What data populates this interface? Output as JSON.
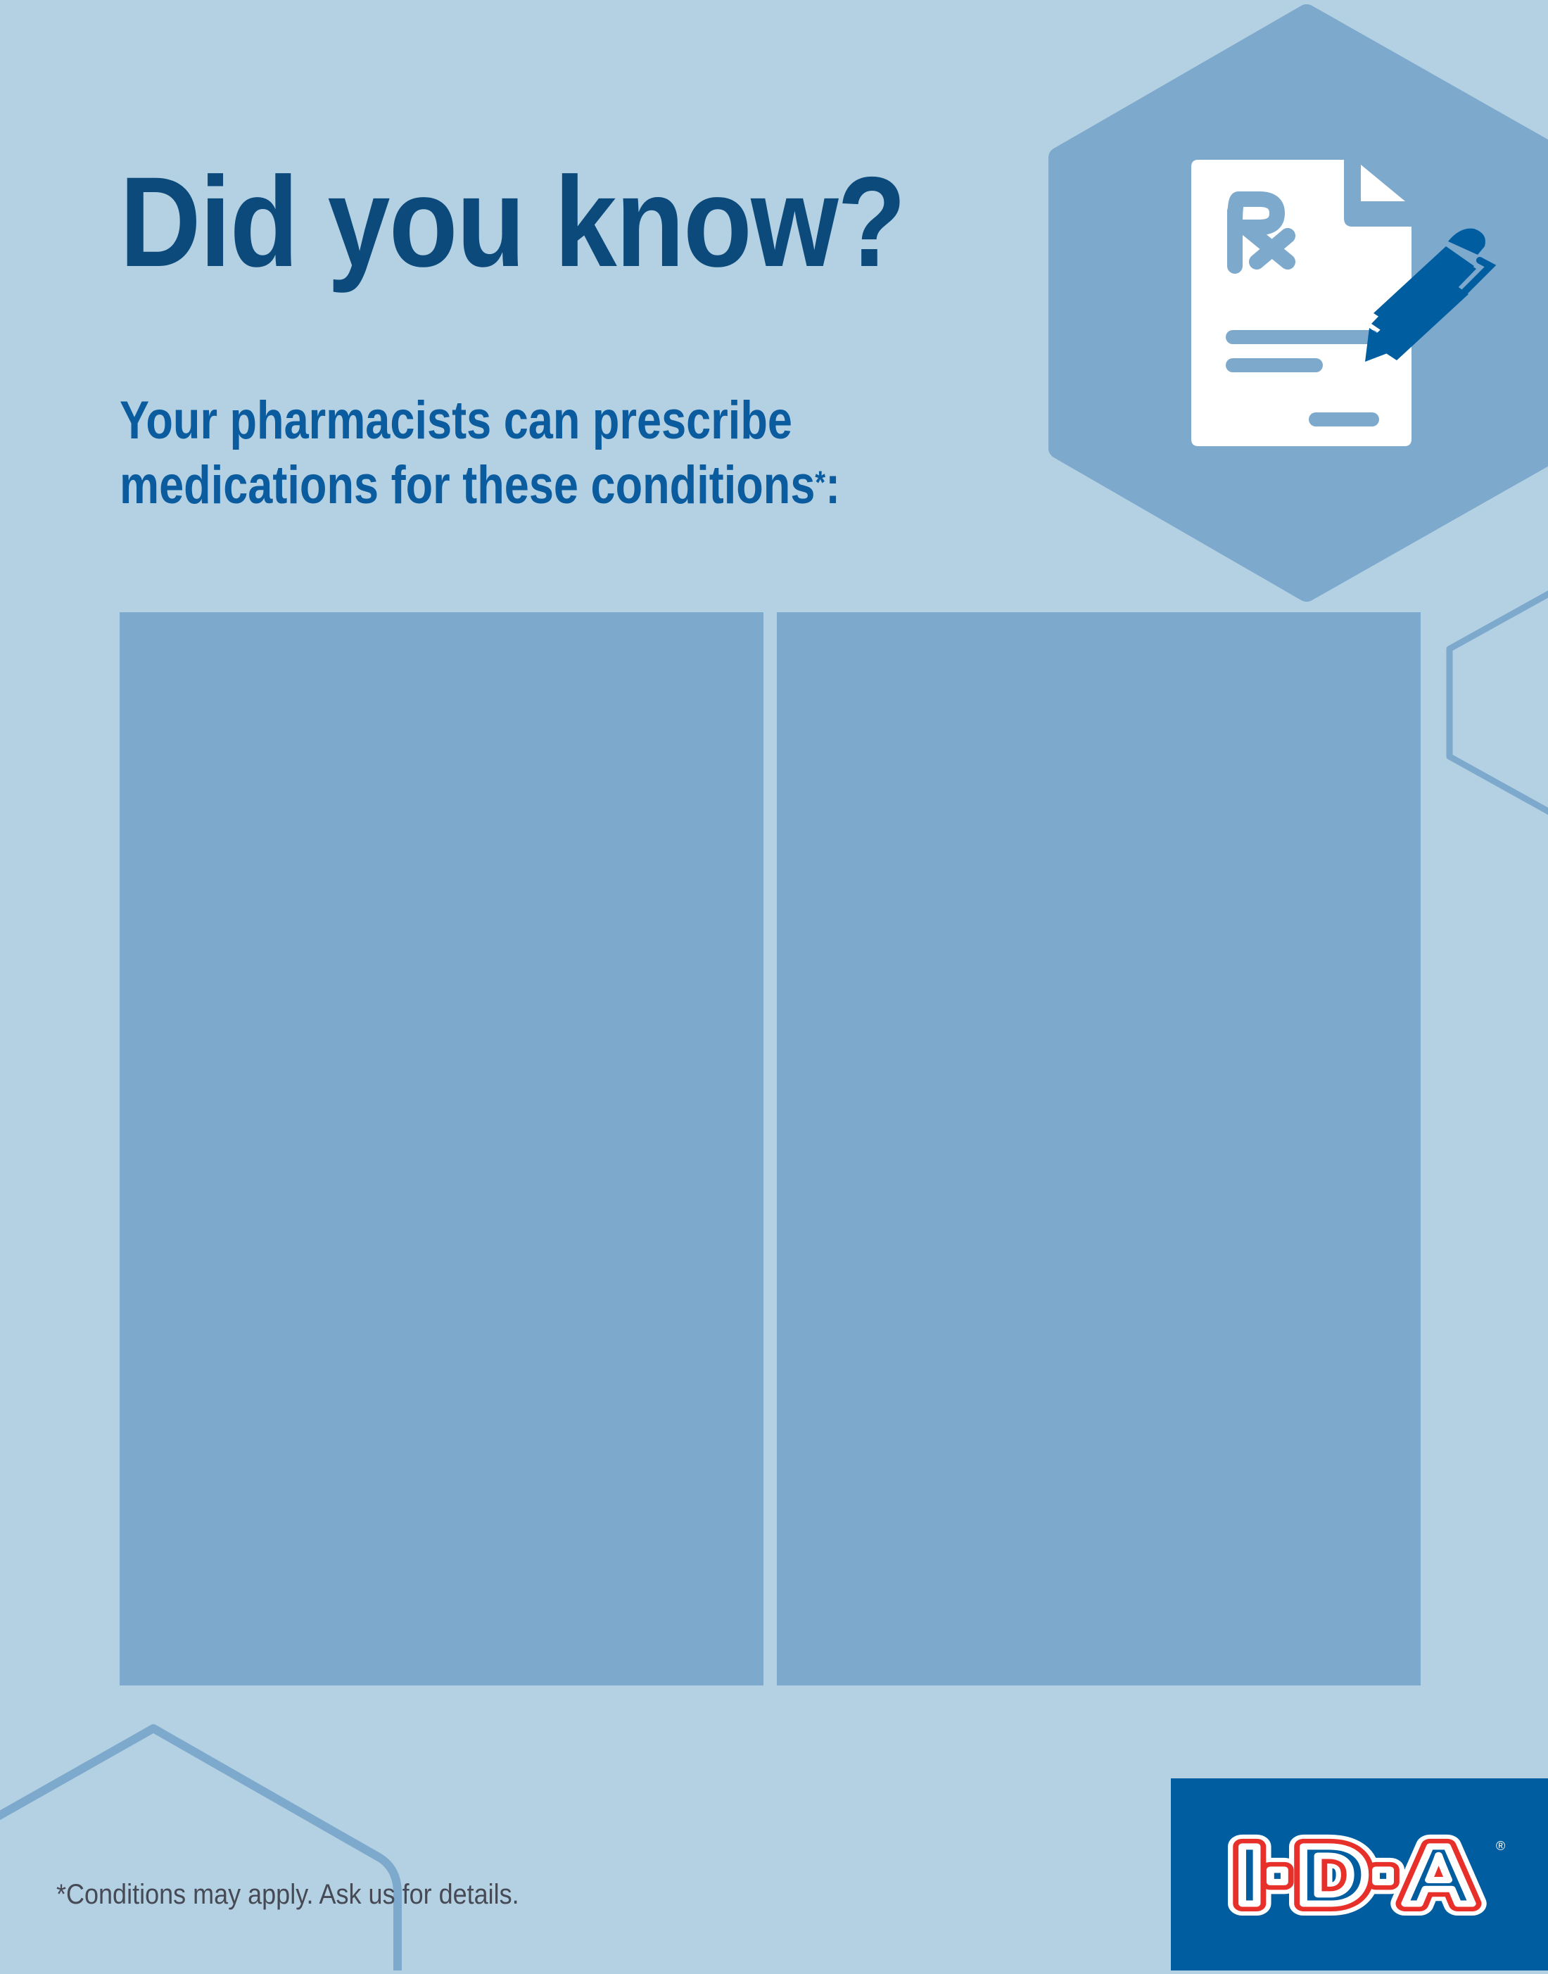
{
  "header": {
    "title": "Did you know?",
    "subtitle_line1": "Your pharmacists can prescribe",
    "subtitle_line2": "medications for these conditions",
    "subtitle_mark": "*",
    "subtitle_end": ":"
  },
  "panels": [
    {
      "label": ""
    },
    {
      "label": ""
    }
  ],
  "illustration": {
    "icon": "prescription-document-with-pen-icon",
    "document_mark": "Rx"
  },
  "footer": {
    "note": "*Conditions may apply. Ask us for details."
  },
  "brand": {
    "logo_text": "I·D·A",
    "registered": "®"
  },
  "colors": {
    "background": "#b4d0e3",
    "panel": "#7ca9cc",
    "title": "#0b4a7b",
    "subtitle": "#0a5c9e",
    "brand_blue": "#005da0",
    "brand_red": "#e8302a"
  }
}
